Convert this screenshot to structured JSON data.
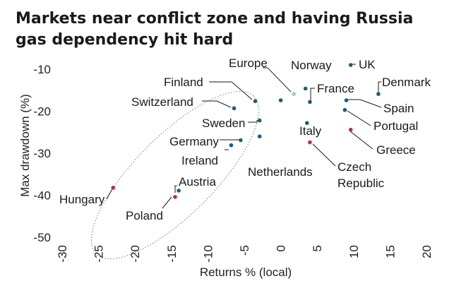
{
  "title_lines": [
    "Markets near conflict zone and having Russia",
    "gas dependency hit hard"
  ],
  "colors": {
    "default": "#1f5a7e",
    "highlight": "#c8283a",
    "europe": "#9cc7e4",
    "leader": "#1a1a1a",
    "ellipse": "#8a8a8a"
  },
  "chart_data": {
    "type": "scatter",
    "title": "Markets near conflict zone and having Russia gas dependency hit hard",
    "xlabel": "Returns % (local)",
    "ylabel": "Max drawdown (%)",
    "xlim": [
      -30,
      20
    ],
    "ylim": [
      -50,
      -10
    ],
    "xticks": [
      "-30",
      "-25",
      "-20",
      "-15",
      "-10",
      "-5",
      "0",
      "5",
      "10",
      "15",
      "20"
    ],
    "yticks": [
      "-10",
      "-20",
      "-30",
      "-40",
      "-50"
    ],
    "grid": false,
    "points": [
      {
        "label": "UK",
        "x": 9.6,
        "y": -9.0,
        "color": "default"
      },
      {
        "label": "Norway",
        "x": 3.4,
        "y": -14.6,
        "color": "default"
      },
      {
        "label": "Europe",
        "x": 1.8,
        "y": -15.9,
        "color": "europe"
      },
      {
        "label": "Denmark",
        "x": 13.4,
        "y": -15.9,
        "color": "default"
      },
      {
        "label": "France",
        "x": 4.0,
        "y": -17.8,
        "color": "default"
      },
      {
        "label": "Finland",
        "x": -3.5,
        "y": -17.6,
        "color": "default"
      },
      {
        "label": "",
        "x": 0.0,
        "y": -17.4,
        "color": "default"
      },
      {
        "label": "Spain",
        "x": 9.0,
        "y": -17.4,
        "color": "default"
      },
      {
        "label": "Switzerland",
        "x": -6.4,
        "y": -19.3,
        "color": "default"
      },
      {
        "label": "Portugal",
        "x": 8.8,
        "y": -19.7,
        "color": "default"
      },
      {
        "label": "Sweden",
        "x": -2.9,
        "y": -22.2,
        "color": "default"
      },
      {
        "label": "Italy",
        "x": 3.6,
        "y": -22.8,
        "color": "default"
      },
      {
        "label": "Greece",
        "x": 9.6,
        "y": -24.4,
        "color": "highlight"
      },
      {
        "label": "Netherlands",
        "x": -2.9,
        "y": -26.0,
        "color": "default"
      },
      {
        "label": "Germany",
        "x": -5.5,
        "y": -26.9,
        "color": "default"
      },
      {
        "label": "Czech Republic",
        "x": 4.0,
        "y": -27.4,
        "color": "highlight"
      },
      {
        "label": "Ireland",
        "x": -6.8,
        "y": -28.1,
        "color": "default"
      },
      {
        "label": "Hungary",
        "x": -23.0,
        "y": -38.2,
        "color": "highlight"
      },
      {
        "label": "Austria",
        "x": -14.0,
        "y": -38.9,
        "color": "default"
      },
      {
        "label": "Poland",
        "x": -14.5,
        "y": -40.4,
        "color": "highlight"
      }
    ]
  }
}
